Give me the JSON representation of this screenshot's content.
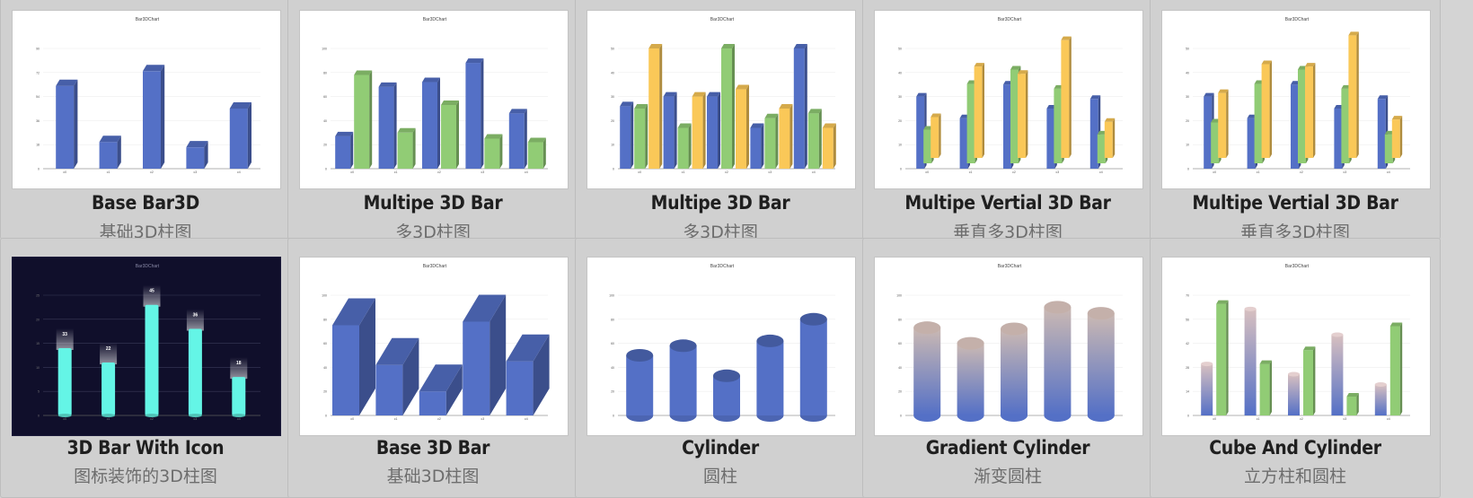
{
  "colors": {
    "blue": "#5470c6",
    "green": "#91cc75",
    "yellow": "#fac858",
    "cyan": "#64f5e6",
    "dark_bg": "#100f2b"
  },
  "cards": [
    {
      "title": "Base Bar3D",
      "subtitle": "基础3D柱图",
      "thumb_title": "Bar3DChart",
      "kind": "bar3d",
      "x": [
        "c0",
        "c1",
        "c2",
        "c3",
        "c4"
      ],
      "ymax": 90,
      "series": [
        {
          "color": "blue",
          "values": [
            62,
            20,
            73,
            16,
            45
          ]
        }
      ]
    },
    {
      "title": "Multipe 3D Bar",
      "subtitle": "多3D柱图",
      "thumb_title": "Bar3DChart",
      "kind": "bar3d",
      "x": [
        "c0",
        "c1",
        "c2",
        "c3",
        "c4"
      ],
      "ymax": 100,
      "series": [
        {
          "color": "blue",
          "values": [
            27,
            68,
            72,
            88,
            46
          ]
        },
        {
          "color": "green",
          "values": [
            78,
            30,
            53,
            25,
            22
          ]
        }
      ]
    },
    {
      "title": "Multipe 3D Bar",
      "subtitle": "多3D柱图",
      "thumb_title": "Bar3DChart",
      "kind": "bar3d",
      "x": [
        "c0",
        "c1",
        "c2",
        "c3",
        "c4"
      ],
      "ymax": 50,
      "series": [
        {
          "color": "blue",
          "values": [
            26,
            30,
            30,
            17,
            50
          ]
        },
        {
          "color": "green",
          "values": [
            25,
            17,
            50,
            21,
            23
          ]
        },
        {
          "color": "yellow",
          "values": [
            50,
            30,
            33,
            25,
            17
          ]
        }
      ]
    },
    {
      "title": "Multipe Vertial 3D Bar",
      "subtitle": "垂直多3D柱图",
      "thumb_title": "Bar3DChart",
      "kind": "stack3d",
      "x": [
        "c0",
        "c1",
        "c2",
        "c3",
        "c4"
      ],
      "ymax": 50,
      "series": [
        {
          "color": "blue",
          "values": [
            30,
            21,
            35,
            25,
            29
          ]
        },
        {
          "color": "green",
          "values": [
            14,
            33,
            39,
            31,
            12
          ]
        },
        {
          "color": "yellow",
          "values": [
            17,
            38,
            35,
            49,
            15
          ]
        }
      ]
    },
    {
      "title": "Multipe Vertial 3D Bar",
      "subtitle": "垂直多3D柱图",
      "thumb_title": "Bar3DChart",
      "kind": "stack3d",
      "x": [
        "c0",
        "c1",
        "c2",
        "c3",
        "c4"
      ],
      "ymax": 50,
      "series": [
        {
          "color": "blue",
          "values": [
            30,
            21,
            35,
            25,
            29
          ]
        },
        {
          "color": "green",
          "values": [
            17,
            33,
            39,
            31,
            12
          ]
        },
        {
          "color": "yellow",
          "values": [
            27,
            39,
            38,
            51,
            16
          ]
        }
      ]
    },
    {
      "title": "3D Bar With Icon",
      "subtitle": "图标装饰的3D柱图",
      "thumb_title": "Bar3DChart",
      "kind": "iconbar",
      "dark": true,
      "x": [
        "c0",
        "c1",
        "c2",
        "c3",
        "c4"
      ],
      "ymax": 25,
      "labels": [
        "33",
        "22",
        "45",
        "36",
        "18"
      ],
      "series": [
        {
          "color": "cyan",
          "values": [
            14,
            11,
            23,
            18,
            8
          ]
        }
      ]
    },
    {
      "title": "Base 3D Bar",
      "subtitle": "基础3D柱图",
      "thumb_title": "Bar3DChart",
      "kind": "bigbar3d",
      "x": [
        "c0",
        "c1",
        "c2",
        "c3",
        "c4"
      ],
      "ymax": 100,
      "series": [
        {
          "color": "blue",
          "values": [
            75,
            42,
            20,
            78,
            45
          ]
        }
      ]
    },
    {
      "title": "Cylinder",
      "subtitle": "圆柱",
      "thumb_title": "Bar3DChart",
      "kind": "cylinder",
      "x": [
        "c0",
        "c1",
        "c2",
        "c3",
        "c4"
      ],
      "ymax": 100,
      "series": [
        {
          "color": "blue",
          "values": [
            50,
            58,
            33,
            62,
            80
          ]
        }
      ]
    },
    {
      "title": "Gradient Cylinder",
      "subtitle": "渐变圆柱",
      "thumb_title": "Bar3DChart",
      "kind": "gradcyl",
      "x": [
        "c0",
        "c1",
        "c2",
        "c3",
        "c4"
      ],
      "ymax": 100,
      "series": [
        {
          "color": "blue",
          "values": [
            73,
            60,
            72,
            90,
            85
          ]
        }
      ]
    },
    {
      "title": "Cube And Cylinder",
      "subtitle": "立方柱和圆柱",
      "thumb_title": "Bar3DChart",
      "kind": "cubecyl",
      "x": [
        "c0",
        "c1",
        "c2",
        "c3",
        "c4"
      ],
      "ymax": 70,
      "series": [
        {
          "color": "blue",
          "values": [
            30,
            62,
            24,
            47,
            18
          ]
        },
        {
          "color": "green",
          "values": [
            65,
            30,
            38,
            11,
            52
          ]
        }
      ]
    }
  ]
}
